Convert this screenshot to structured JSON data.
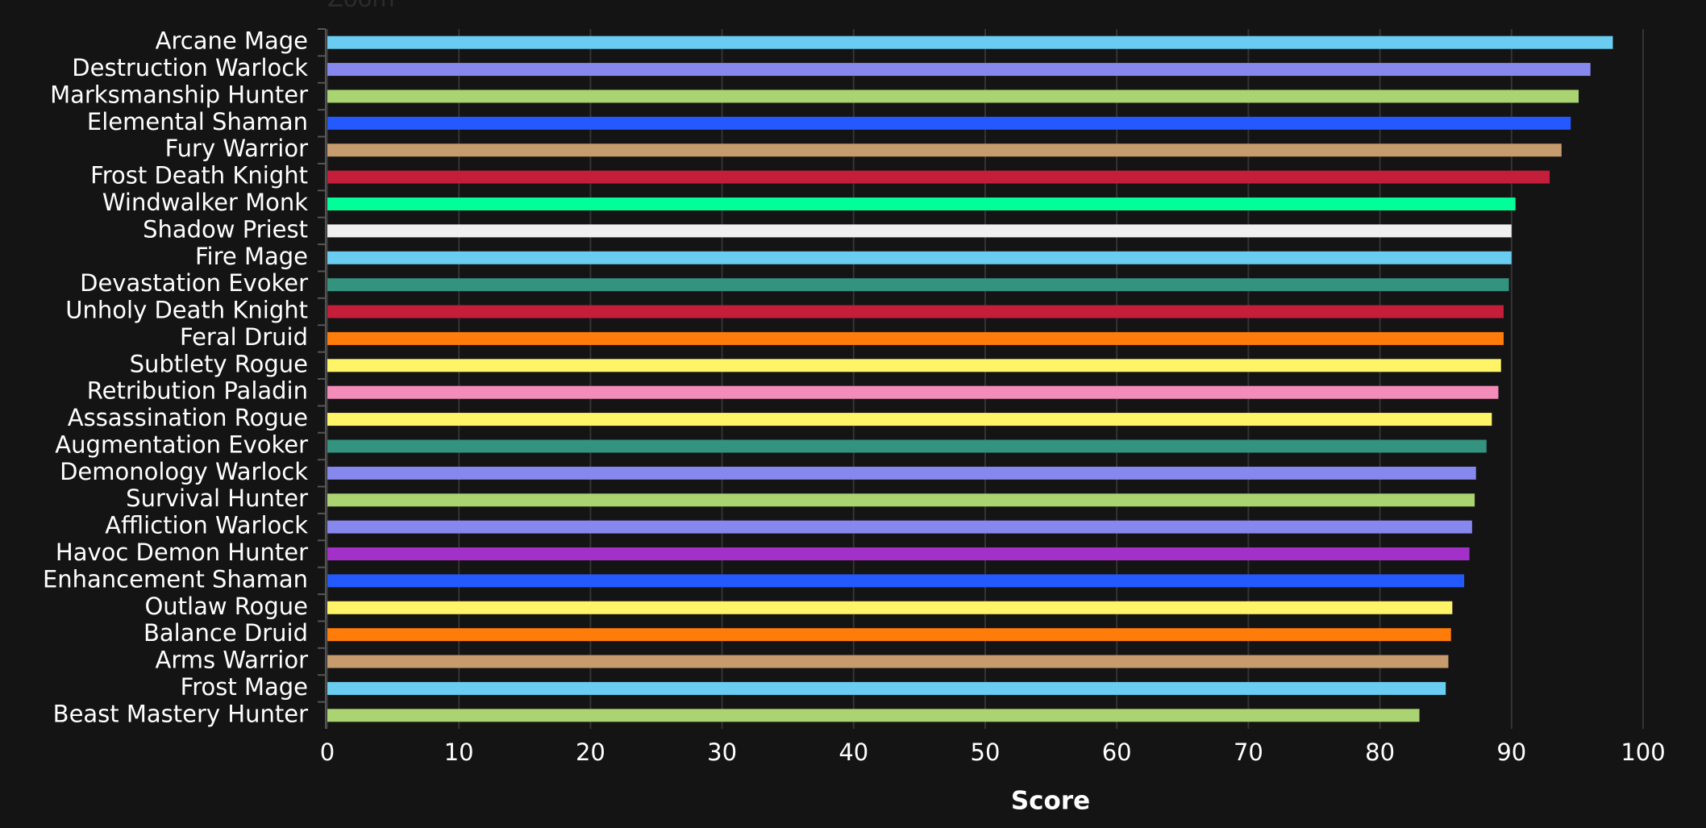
{
  "chart_data": {
    "type": "bar",
    "orientation": "horizontal",
    "zoom_label": "Zoom",
    "x_label": "Score",
    "categories": [
      "Arcane Mage",
      "Destruction Warlock",
      "Marksmanship Hunter",
      "Elemental Shaman",
      "Fury Warrior",
      "Frost Death Knight",
      "Windwalker Monk",
      "Shadow Priest",
      "Fire Mage",
      "Devastation Evoker",
      "Unholy Death Knight",
      "Feral Druid",
      "Subtlety Rogue",
      "Retribution Paladin",
      "Assassination Rogue",
      "Augmentation Evoker",
      "Demonology Warlock",
      "Survival Hunter",
      "Affliction Warlock",
      "Havoc Demon Hunter",
      "Enhancement Shaman",
      "Outlaw Rogue",
      "Balance Druid",
      "Arms Warrior",
      "Frost Mage",
      "Beast Mastery Hunter"
    ],
    "values": [
      97.7,
      96.0,
      95.1,
      94.5,
      93.8,
      92.9,
      90.3,
      90.0,
      90.0,
      89.8,
      89.4,
      89.4,
      89.2,
      89.0,
      88.5,
      88.1,
      87.3,
      87.2,
      87.0,
      86.8,
      86.4,
      85.5,
      85.4,
      85.2,
      85.0,
      83.0
    ],
    "colors": [
      "#69ccf0",
      "#8788ee",
      "#aad372",
      "#2459ff",
      "#c69b6d",
      "#c41e3a",
      "#00ff98",
      "#f0f0f0",
      "#69ccf0",
      "#33937f",
      "#c41e3a",
      "#ff7c0a",
      "#fff468",
      "#f48cba",
      "#fff468",
      "#33937f",
      "#8788ee",
      "#aad372",
      "#8788ee",
      "#a330c9",
      "#2459ff",
      "#fff468",
      "#ff7c0a",
      "#c69b6d",
      "#69ccf0",
      "#aad372"
    ],
    "xlim": [
      0,
      100
    ],
    "xticks": [
      0,
      10,
      20,
      30,
      40,
      50,
      60,
      70,
      80,
      90,
      100
    ],
    "grid": true
  }
}
